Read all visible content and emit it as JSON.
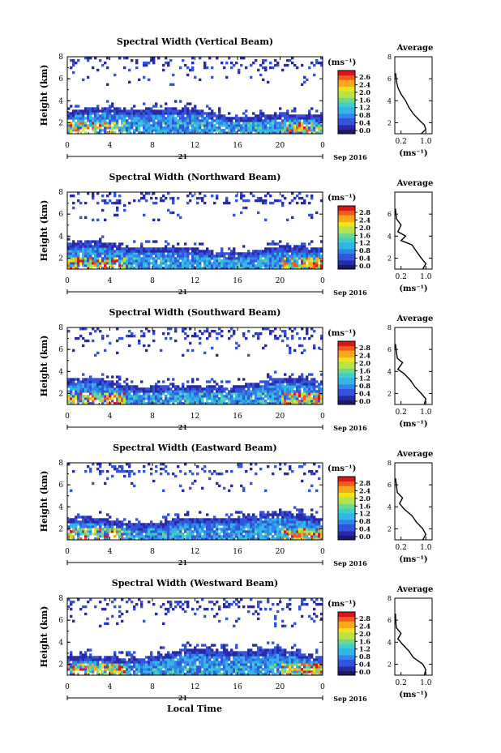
{
  "figure": {
    "xlabel": "Local Time",
    "date_label": "Sep 2016",
    "day_label": "21",
    "colorbar_unit": "(ms⁻¹)",
    "avg_title": "Average",
    "avg_xlabel": "(ms⁻¹)",
    "heatmap_ylabel": "Height (km)"
  },
  "colors": {
    "scale": [
      "#1a1a66",
      "#2a2aa8",
      "#3355dd",
      "#2f86ea",
      "#33b5e8",
      "#3ed0c8",
      "#6ed98d",
      "#b6e34a",
      "#f2e21a",
      "#f7a91a",
      "#f45a1e",
      "#d9161a"
    ]
  },
  "chart_data": [
    {
      "type": "heatmap",
      "title": "Spectral Width (Vertical Beam)",
      "x_ticks": [
        "0",
        "4",
        "8",
        "12",
        "16",
        "20",
        "0"
      ],
      "y_ticks": [
        "2",
        "4",
        "6",
        "8"
      ],
      "xlim": [
        0,
        24
      ],
      "ylim": [
        1,
        8
      ],
      "colorbar_ticks": [
        "2.6",
        "2.4",
        "2.0",
        "1.6",
        "1.2",
        "0.8",
        "0.4",
        "0.0"
      ],
      "colorbar_range": [
        0,
        2.8
      ],
      "average": {
        "x_ticks": [
          "0.2",
          "1.0"
        ],
        "y_ticks": [
          "2",
          "4",
          "6",
          "8"
        ],
        "xlim": [
          0,
          1.2
        ],
        "ylim": [
          1,
          8
        ],
        "profile": [
          {
            "h": 1,
            "v": 0.85
          },
          {
            "h": 1.4,
            "v": 1.0
          },
          {
            "h": 1.8,
            "v": 0.95
          },
          {
            "h": 2.2,
            "v": 0.8
          },
          {
            "h": 2.8,
            "v": 0.6
          },
          {
            "h": 3.4,
            "v": 0.45
          },
          {
            "h": 4.0,
            "v": 0.35
          },
          {
            "h": 4.6,
            "v": 0.2
          },
          {
            "h": 5.2,
            "v": 0.1
          },
          {
            "h": 5.8,
            "v": 0.05
          },
          {
            "h": 6.5,
            "v": 0.03
          }
        ]
      }
    },
    {
      "type": "heatmap",
      "title": "Spectral Width (Northward Beam)",
      "x_ticks": [
        "0",
        "4",
        "8",
        "12",
        "16",
        "20",
        "0"
      ],
      "y_ticks": [
        "2",
        "4",
        "6",
        "8"
      ],
      "xlim": [
        0,
        24
      ],
      "ylim": [
        1,
        8
      ],
      "colorbar_ticks": [
        "2.8",
        "2.4",
        "2.0",
        "1.6",
        "1.2",
        "0.8",
        "0.4",
        "0.0"
      ],
      "colorbar_range": [
        0,
        2.8
      ],
      "average": {
        "x_ticks": [
          "0.2",
          "1.0"
        ],
        "y_ticks": [
          "2",
          "4",
          "6"
        ],
        "xlim": [
          0,
          1.2
        ],
        "ylim": [
          1,
          8
        ],
        "profile": [
          {
            "h": 1,
            "v": 0.9
          },
          {
            "h": 1.5,
            "v": 1.0
          },
          {
            "h": 2.0,
            "v": 0.85
          },
          {
            "h": 2.6,
            "v": 0.7
          },
          {
            "h": 3.2,
            "v": 0.55
          },
          {
            "h": 3.6,
            "v": 0.2
          },
          {
            "h": 4.0,
            "v": 0.35
          },
          {
            "h": 4.4,
            "v": 0.1
          },
          {
            "h": 5.0,
            "v": 0.2
          },
          {
            "h": 5.6,
            "v": 0.05
          },
          {
            "h": 6.5,
            "v": 0.02
          }
        ]
      }
    },
    {
      "type": "heatmap",
      "title": "Spectral Width (Southward Beam)",
      "x_ticks": [
        "0",
        "4",
        "8",
        "12",
        "16",
        "20",
        "0"
      ],
      "y_ticks": [
        "2",
        "4",
        "6",
        "8"
      ],
      "xlim": [
        0,
        24
      ],
      "ylim": [
        1,
        8
      ],
      "colorbar_ticks": [
        "2.8",
        "2.4",
        "2.0",
        "1.6",
        "1.2",
        "0.8",
        "0.4",
        "0.0"
      ],
      "colorbar_range": [
        0,
        2.8
      ],
      "average": {
        "x_ticks": [
          "0.2",
          "1.0"
        ],
        "y_ticks": [
          "2",
          "4",
          "6",
          "8"
        ],
        "xlim": [
          0,
          1.2
        ],
        "ylim": [
          1,
          8
        ],
        "profile": [
          {
            "h": 1,
            "v": 0.95
          },
          {
            "h": 1.5,
            "v": 1.0
          },
          {
            "h": 2.0,
            "v": 0.85
          },
          {
            "h": 2.6,
            "v": 0.65
          },
          {
            "h": 3.2,
            "v": 0.5
          },
          {
            "h": 3.8,
            "v": 0.3
          },
          {
            "h": 4.2,
            "v": 0.1
          },
          {
            "h": 4.8,
            "v": 0.25
          },
          {
            "h": 5.2,
            "v": 0.08
          },
          {
            "h": 5.8,
            "v": 0.05
          },
          {
            "h": 6.5,
            "v": 0.02
          }
        ]
      }
    },
    {
      "type": "heatmap",
      "title": "Spectral Width (Eastward Beam)",
      "x_ticks": [
        "0",
        "4",
        "8",
        "12",
        "16",
        "20",
        "0"
      ],
      "y_ticks": [
        "2",
        "4",
        "6",
        "8"
      ],
      "xlim": [
        0,
        24
      ],
      "ylim": [
        1,
        8
      ],
      "colorbar_ticks": [
        "2.8",
        "2.4",
        "2.0",
        "1.6",
        "1.2",
        "0.8",
        "0.4",
        "0.0"
      ],
      "colorbar_range": [
        0,
        2.8
      ],
      "average": {
        "x_ticks": [
          "0.2",
          "1.0"
        ],
        "y_ticks": [
          "2",
          "4",
          "6",
          "8"
        ],
        "xlim": [
          0,
          1.2
        ],
        "ylim": [
          1,
          8
        ],
        "profile": [
          {
            "h": 1,
            "v": 0.9
          },
          {
            "h": 1.5,
            "v": 1.0
          },
          {
            "h": 2.0,
            "v": 0.9
          },
          {
            "h": 2.6,
            "v": 0.7
          },
          {
            "h": 3.2,
            "v": 0.55
          },
          {
            "h": 3.8,
            "v": 0.3
          },
          {
            "h": 4.3,
            "v": 0.15
          },
          {
            "h": 4.8,
            "v": 0.25
          },
          {
            "h": 5.3,
            "v": 0.08
          },
          {
            "h": 6.0,
            "v": 0.05
          },
          {
            "h": 6.6,
            "v": 0.02
          }
        ]
      }
    },
    {
      "type": "heatmap",
      "title": "Spectral Width (Westward Beam)",
      "x_ticks": [
        "0",
        "4",
        "8",
        "12",
        "16",
        "20",
        "0"
      ],
      "y_ticks": [
        "2",
        "4",
        "6",
        "8"
      ],
      "xlim": [
        0,
        24
      ],
      "ylim": [
        1,
        8
      ],
      "colorbar_ticks": [
        "2.8",
        "2.4",
        "2.0",
        "1.6",
        "1.2",
        "0.8",
        "0.4",
        "0.0"
      ],
      "colorbar_range": [
        0,
        2.8
      ],
      "average": {
        "x_ticks": [
          "0.2",
          "1.0"
        ],
        "y_ticks": [
          "2",
          "4",
          "6",
          "8"
        ],
        "xlim": [
          0,
          1.2
        ],
        "ylim": [
          1,
          8
        ],
        "profile": [
          {
            "h": 1,
            "v": 0.95
          },
          {
            "h": 1.5,
            "v": 1.0
          },
          {
            "h": 2.0,
            "v": 0.9
          },
          {
            "h": 2.6,
            "v": 0.6
          },
          {
            "h": 3.2,
            "v": 0.45
          },
          {
            "h": 3.8,
            "v": 0.25
          },
          {
            "h": 4.3,
            "v": 0.1
          },
          {
            "h": 4.8,
            "v": 0.2
          },
          {
            "h": 5.3,
            "v": 0.05
          },
          {
            "h": 6.0,
            "v": 0.03
          },
          {
            "h": 6.6,
            "v": 0.02
          }
        ]
      }
    }
  ]
}
